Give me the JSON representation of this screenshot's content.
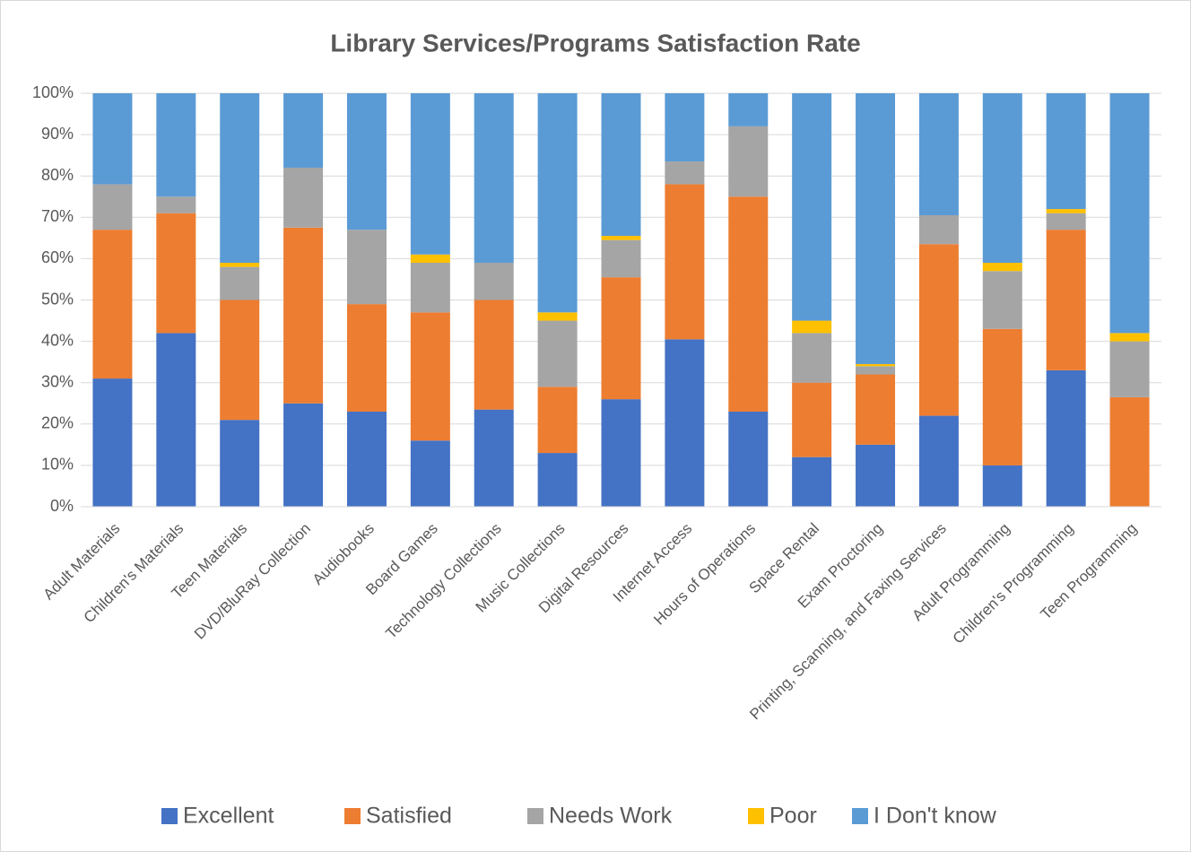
{
  "chart_data": {
    "type": "stacked_bar",
    "title": "Library Services/Programs Satisfaction Rate",
    "categories": [
      "Adult Materials",
      "Children's Materials",
      "Teen Materials",
      "DVD/BluRay Collection",
      "Audiobooks",
      "Board Games",
      "Technology Collections",
      "Music Collections",
      "Digital Resources",
      "Internet Access",
      "Hours of Operations",
      "Space Rental",
      "Exam Proctoring",
      "Printing, Scanning, and Faxing Services",
      "Adult Programming",
      "Children's Programming",
      "Teen Programming"
    ],
    "series": [
      {
        "name": "Excellent",
        "color": "#4472c4",
        "values": [
          31,
          42,
          21,
          25,
          23,
          16,
          23.5,
          13,
          26,
          40.5,
          23,
          12,
          15,
          22,
          10,
          33,
          0
        ]
      },
      {
        "name": "Satisfied",
        "color": "#ed7d31",
        "values": [
          36,
          29,
          29,
          42.5,
          26,
          31,
          26.5,
          16,
          29.5,
          37.5,
          52,
          18,
          17,
          41.5,
          33,
          34,
          26.5
        ]
      },
      {
        "name": "Needs Work",
        "color": "#a5a5a5",
        "values": [
          11,
          4,
          8,
          14.5,
          18,
          12,
          9,
          16,
          9,
          5.5,
          17,
          12,
          2,
          7,
          14,
          4,
          13.5
        ]
      },
      {
        "name": "Poor",
        "color": "#ffc000",
        "values": [
          0,
          0,
          1,
          0,
          0,
          2,
          0,
          2,
          1,
          0,
          0,
          3,
          0.5,
          0,
          2,
          1,
          2
        ]
      },
      {
        "name": "I Don't know",
        "color": "#5b9bd5",
        "values": [
          22,
          25,
          41,
          18,
          33,
          39,
          41,
          53,
          34.5,
          16.5,
          8,
          55,
          65.5,
          29.5,
          41,
          28,
          58
        ]
      }
    ],
    "ylim": [
      0,
      100
    ],
    "yticks": [
      {
        "value": 0,
        "label": "0%"
      },
      {
        "value": 10,
        "label": "10%"
      },
      {
        "value": 20,
        "label": "20%"
      },
      {
        "value": 30,
        "label": "30%"
      },
      {
        "value": 40,
        "label": "40%"
      },
      {
        "value": 50,
        "label": "50%"
      },
      {
        "value": 60,
        "label": "60%"
      },
      {
        "value": 70,
        "label": "70%"
      },
      {
        "value": 80,
        "label": "80%"
      },
      {
        "value": 90,
        "label": "90%"
      },
      {
        "value": 100,
        "label": "100%"
      }
    ],
    "grid": true,
    "legend": "bottom"
  }
}
